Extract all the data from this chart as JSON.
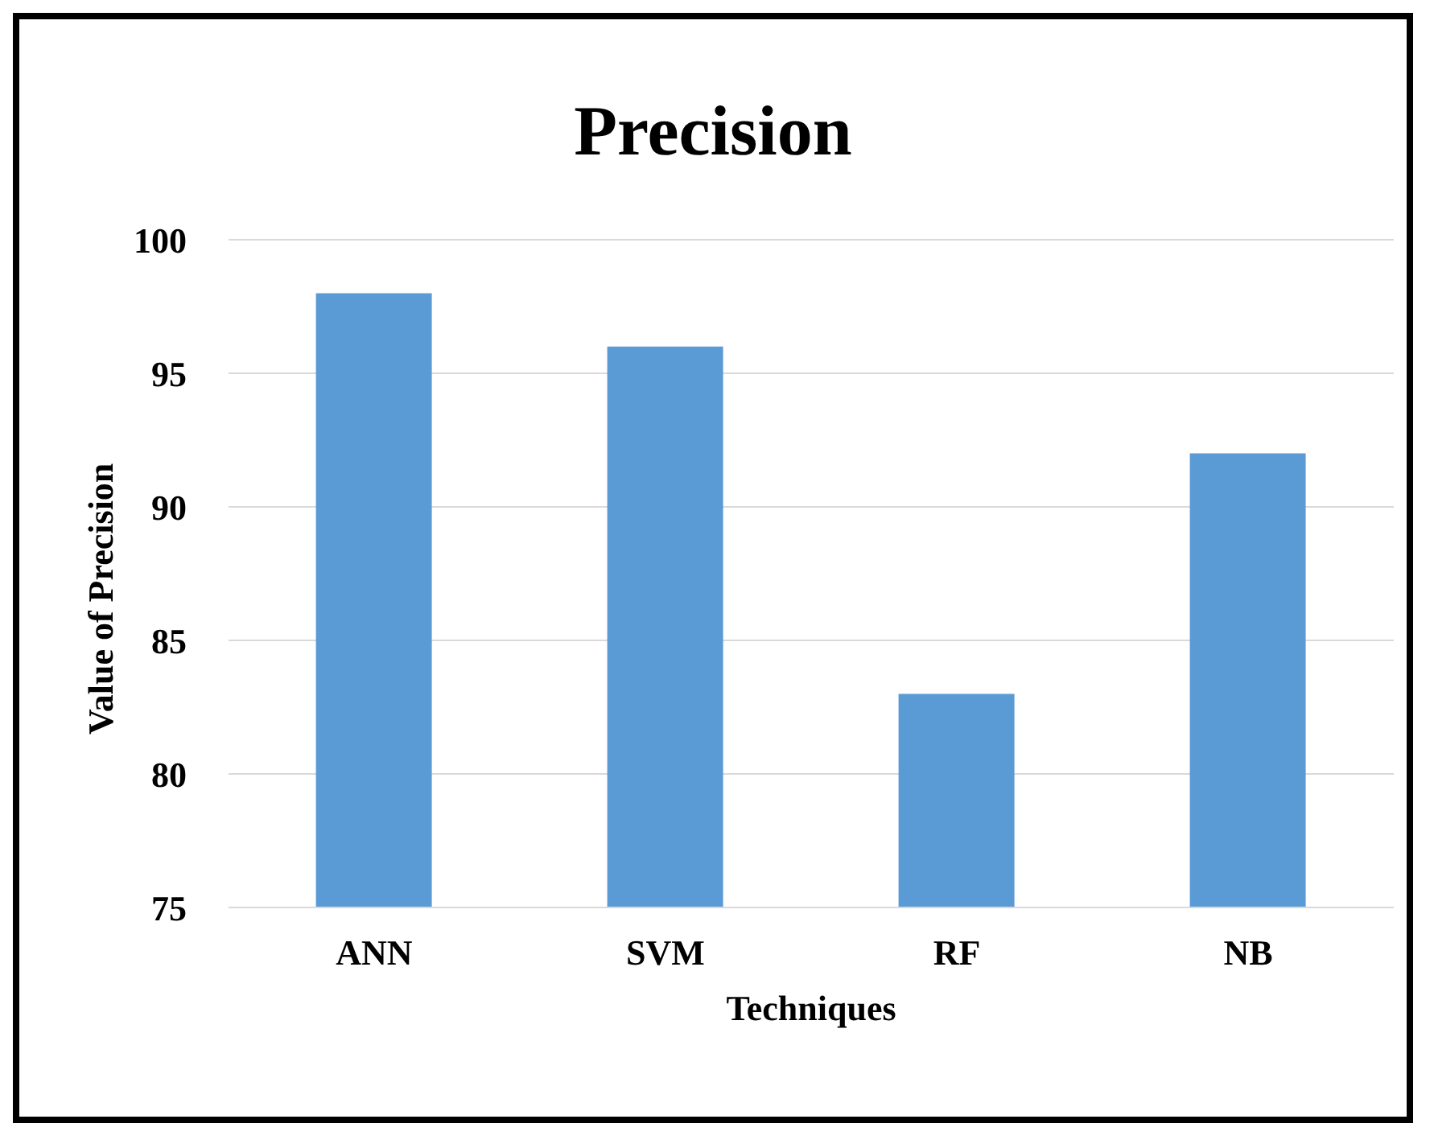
{
  "chart_data": {
    "type": "bar",
    "title": "Precision",
    "xlabel": "Techniques",
    "ylabel": "Value of Precision",
    "categories": [
      "ANN",
      "SVM",
      "RF",
      "NB"
    ],
    "values": [
      98,
      96,
      83,
      92
    ],
    "color": "#5b9bd5",
    "ylim": [
      75,
      100
    ],
    "yticks": [
      75,
      80,
      85,
      90,
      95,
      100
    ],
    "grid": "y",
    "legend": false
  }
}
